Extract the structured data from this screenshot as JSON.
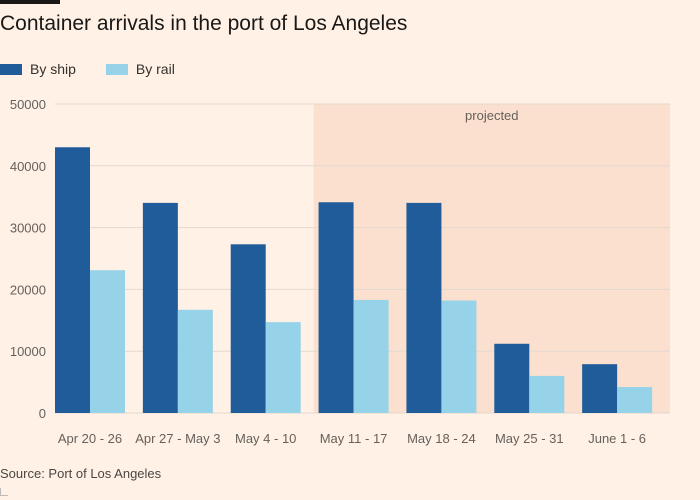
{
  "title": "Container arrivals in the port of Los Angeles",
  "source": "Source: Port of Los Angeles",
  "colors": {
    "background": "#fff1e5",
    "ship": "#1f5c99",
    "rail": "#96d2e8",
    "projected_band": "#fbe0cf",
    "grid": "#e3d9cf",
    "axis_text": "#66605c"
  },
  "chart_data": {
    "type": "bar",
    "title": "Container arrivals in the port of Los Angeles",
    "categories": [
      "Apr 20 - 26",
      "Apr 27 - May 3",
      "May 4 - 10",
      "May 11 - 17",
      "May 18 - 24",
      "May 25 - 31",
      "June 1 - 6"
    ],
    "series": [
      {
        "name": "By ship",
        "color": "#1f5c99",
        "values": [
          43000,
          34000,
          27300,
          34100,
          34000,
          11200,
          7900
        ]
      },
      {
        "name": "By rail",
        "color": "#96d2e8",
        "values": [
          23100,
          16700,
          14700,
          18300,
          18200,
          6000,
          4200
        ]
      }
    ],
    "ylim": [
      0,
      50000
    ],
    "yticks": [
      0,
      10000,
      20000,
      30000,
      40000,
      50000
    ],
    "xlabel": "",
    "ylabel": "",
    "grid": true,
    "legend_position": "top-left",
    "projected": {
      "label": "projected",
      "from_category": "May 11 - 17",
      "to_category": "June 1 - 6"
    }
  }
}
